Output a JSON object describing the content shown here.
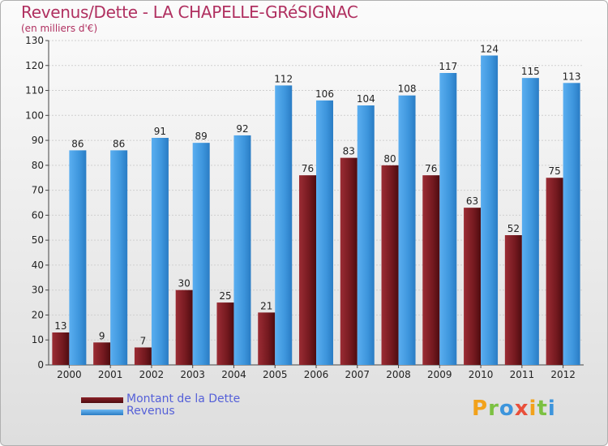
{
  "title": "Revenus/Dette - LA CHAPELLE-GRéSIGNAC",
  "subtitle": "(en milliers d'€)",
  "logo_text": "Proxiti",
  "colors": {
    "dette": "#6e1a1e",
    "revenus": "#3d95dc"
  },
  "legend": [
    {
      "label": "Montant de la Dette",
      "color": "#6e1a1e"
    },
    {
      "label": "Revenus",
      "color": "#3d95dc"
    }
  ],
  "chart_data": {
    "type": "bar",
    "title": "Revenus/Dette - LA CHAPELLE-GRéSIGNAC",
    "subtitle": "(en milliers d'€)",
    "xlabel": "",
    "ylabel": "",
    "ylim": [
      0,
      130
    ],
    "yticks": [
      0,
      10,
      20,
      30,
      40,
      50,
      60,
      70,
      80,
      90,
      100,
      110,
      120,
      130
    ],
    "grid": true,
    "legend_position": "bottom-left",
    "categories": [
      "2000",
      "2001",
      "2002",
      "2003",
      "2004",
      "2005",
      "2006",
      "2007",
      "2008",
      "2009",
      "2010",
      "2011",
      "2012"
    ],
    "series": [
      {
        "name": "Montant de la Dette",
        "values": [
          13,
          9,
          7,
          30,
          25,
          21,
          76,
          83,
          80,
          76,
          63,
          52,
          75
        ]
      },
      {
        "name": "Revenus",
        "values": [
          86,
          86,
          91,
          89,
          92,
          112,
          106,
          104,
          108,
          117,
          124,
          115,
          113
        ]
      }
    ]
  }
}
